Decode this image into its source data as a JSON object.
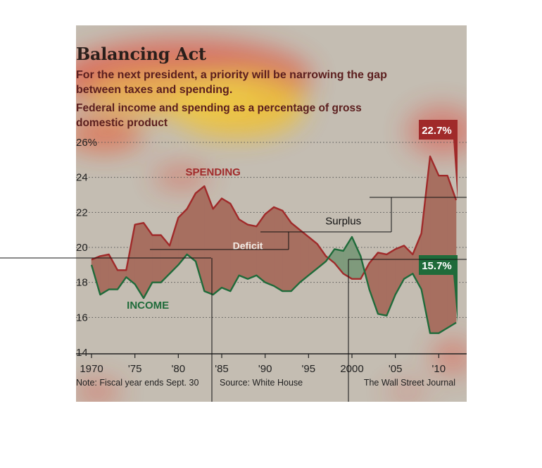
{
  "header": {
    "title": "Balancing Act",
    "subtitle": "For the next president, a priority will be narrowing the gap between taxes and spending.",
    "chart_heading": "Federal income and spending as a percentage of gross domestic product"
  },
  "footer": {
    "note": "Note: Fiscal year ends Sept. 30",
    "source": "Source: White House",
    "credit": "The Wall Street Journal"
  },
  "colors": {
    "spending": "#a02a2a",
    "income": "#1f6b3a",
    "deficit_fill": "#a76f60",
    "surplus_fill": "#7f9a7c",
    "background": "#c4bdb2"
  },
  "chart_data": {
    "type": "area",
    "title": "Federal income and spending as a percentage of gross domestic product",
    "ylim": [
      14,
      26
    ],
    "yticks": [
      {
        "value": 14,
        "label": "14"
      },
      {
        "value": 16,
        "label": "16"
      },
      {
        "value": 18,
        "label": "18"
      },
      {
        "value": 20,
        "label": "20"
      },
      {
        "value": 22,
        "label": "22"
      },
      {
        "value": 24,
        "label": "24"
      },
      {
        "value": 26,
        "label": "26%"
      }
    ],
    "xlim": [
      1970,
      2012
    ],
    "xticks": [
      {
        "value": 1970,
        "label": "1970"
      },
      {
        "value": 1975,
        "label": "'75"
      },
      {
        "value": 1980,
        "label": "'80"
      },
      {
        "value": 1985,
        "label": "'85"
      },
      {
        "value": 1990,
        "label": "'90"
      },
      {
        "value": 1995,
        "label": "'95"
      },
      {
        "value": 2000,
        "label": "2000"
      },
      {
        "value": 2005,
        "label": "'05"
      },
      {
        "value": 2010,
        "label": "'10"
      }
    ],
    "grid": true,
    "series": [
      {
        "name": "SPENDING",
        "x": [
          1970,
          1971,
          1972,
          1973,
          1974,
          1975,
          1976,
          1977,
          1978,
          1979,
          1980,
          1981,
          1982,
          1983,
          1984,
          1985,
          1986,
          1987,
          1988,
          1989,
          1990,
          1991,
          1992,
          1993,
          1994,
          1995,
          1996,
          1997,
          1998,
          1999,
          2000,
          2001,
          2002,
          2003,
          2004,
          2005,
          2006,
          2007,
          2008,
          2009,
          2010,
          2011,
          2012
        ],
        "values": [
          19.3,
          19.5,
          19.6,
          18.7,
          18.7,
          21.3,
          21.4,
          20.7,
          20.7,
          20.1,
          21.7,
          22.2,
          23.1,
          23.5,
          22.2,
          22.8,
          22.5,
          21.6,
          21.3,
          21.2,
          21.9,
          22.3,
          22.1,
          21.4,
          21.0,
          20.6,
          20.2,
          19.5,
          19.1,
          18.5,
          18.2,
          18.2,
          19.1,
          19.7,
          19.6,
          19.9,
          20.1,
          19.6,
          20.8,
          25.2,
          24.1,
          24.1,
          22.7
        ]
      },
      {
        "name": "INCOME",
        "x": [
          1970,
          1971,
          1972,
          1973,
          1974,
          1975,
          1976,
          1977,
          1978,
          1979,
          1980,
          1981,
          1982,
          1983,
          1984,
          1985,
          1986,
          1987,
          1988,
          1989,
          1990,
          1991,
          1992,
          1993,
          1994,
          1995,
          1996,
          1997,
          1998,
          1999,
          2000,
          2001,
          2002,
          2003,
          2004,
          2005,
          2006,
          2007,
          2008,
          2009,
          2010,
          2011,
          2012
        ],
        "values": [
          19.0,
          17.3,
          17.6,
          17.6,
          18.3,
          17.9,
          17.1,
          18.0,
          18.0,
          18.5,
          19.0,
          19.6,
          19.2,
          17.5,
          17.3,
          17.7,
          17.5,
          18.4,
          18.2,
          18.4,
          18.0,
          17.8,
          17.5,
          17.5,
          18.0,
          18.4,
          18.8,
          19.2,
          19.9,
          19.8,
          20.6,
          19.5,
          17.6,
          16.2,
          16.1,
          17.3,
          18.2,
          18.5,
          17.6,
          15.1,
          15.1,
          15.4,
          15.7
        ]
      }
    ],
    "annotations": [
      {
        "text": "SPENDING",
        "x": 1984,
        "y": 24.1
      },
      {
        "text": "INCOME",
        "x": 1976.5,
        "y": 16.5
      },
      {
        "text": "Deficit",
        "x": 1988,
        "y": 19.9
      },
      {
        "text": "Surplus",
        "x": 1999,
        "y": 21.3
      }
    ],
    "endpoint_labels": [
      {
        "series": "SPENDING",
        "text": "22.7%"
      },
      {
        "series": "INCOME",
        "text": "15.7%"
      }
    ]
  }
}
